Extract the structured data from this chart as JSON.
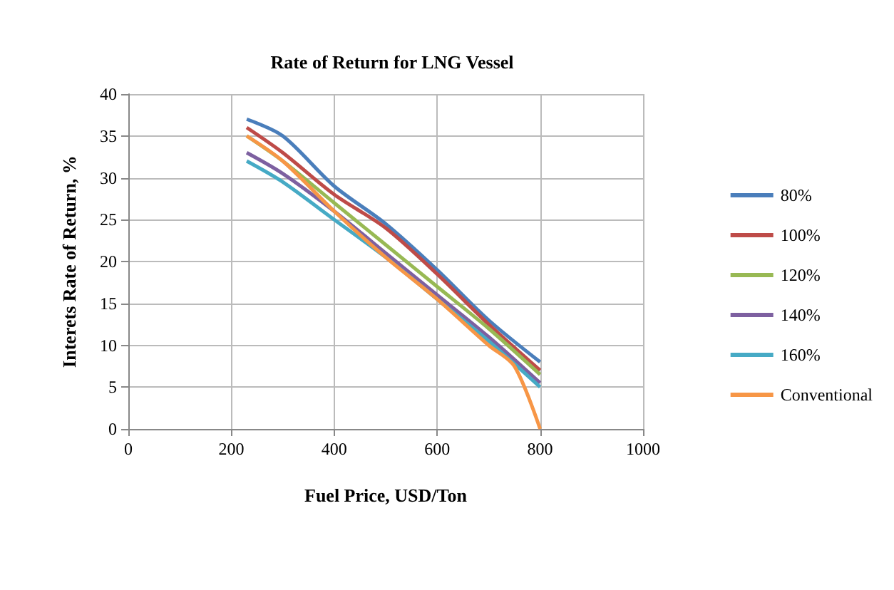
{
  "chart_data": {
    "type": "line",
    "title": "Rate of Return for LNG Vessel",
    "xlabel": "Fuel Price, USD/Ton",
    "ylabel": "Interets Rate of Return, %",
    "x": [
      230,
      300,
      400,
      500,
      600,
      700,
      800
    ],
    "series": [
      {
        "name": "80%",
        "color": "#4a7ebb",
        "values": [
          37,
          35,
          29,
          24.5,
          19,
          13,
          8
        ]
      },
      {
        "name": "100%",
        "color": "#be4b48",
        "values": [
          36,
          33,
          28,
          24,
          18.5,
          12.5,
          7
        ]
      },
      {
        "name": "120%",
        "color": "#98b954",
        "values": [
          35,
          32,
          27,
          22,
          17,
          12,
          6.5
        ]
      },
      {
        "name": "140%",
        "color": "#7d60a0",
        "values": [
          33,
          30.5,
          26,
          21,
          16,
          11,
          5.5
        ]
      },
      {
        "name": "160%",
        "color": "#46aac5",
        "values": [
          32,
          29.5,
          25,
          20.5,
          15.5,
          10.5,
          5
        ]
      },
      {
        "name": "Conventional",
        "color": "#f79646",
        "x": [
          230,
          300,
          400,
          500,
          600,
          700,
          750,
          800
        ],
        "values": [
          35,
          32,
          26,
          20.5,
          15.5,
          10,
          7.5,
          0
        ]
      }
    ],
    "xlim": [
      0,
      1000
    ],
    "xticks": [
      0,
      200,
      400,
      600,
      800,
      1000
    ],
    "ylim": [
      0,
      40
    ],
    "yticks": [
      0,
      5,
      10,
      15,
      20,
      25,
      30,
      35,
      40
    ],
    "grid": true,
    "legend": "right",
    "marker": "none",
    "line_style": "solid"
  }
}
